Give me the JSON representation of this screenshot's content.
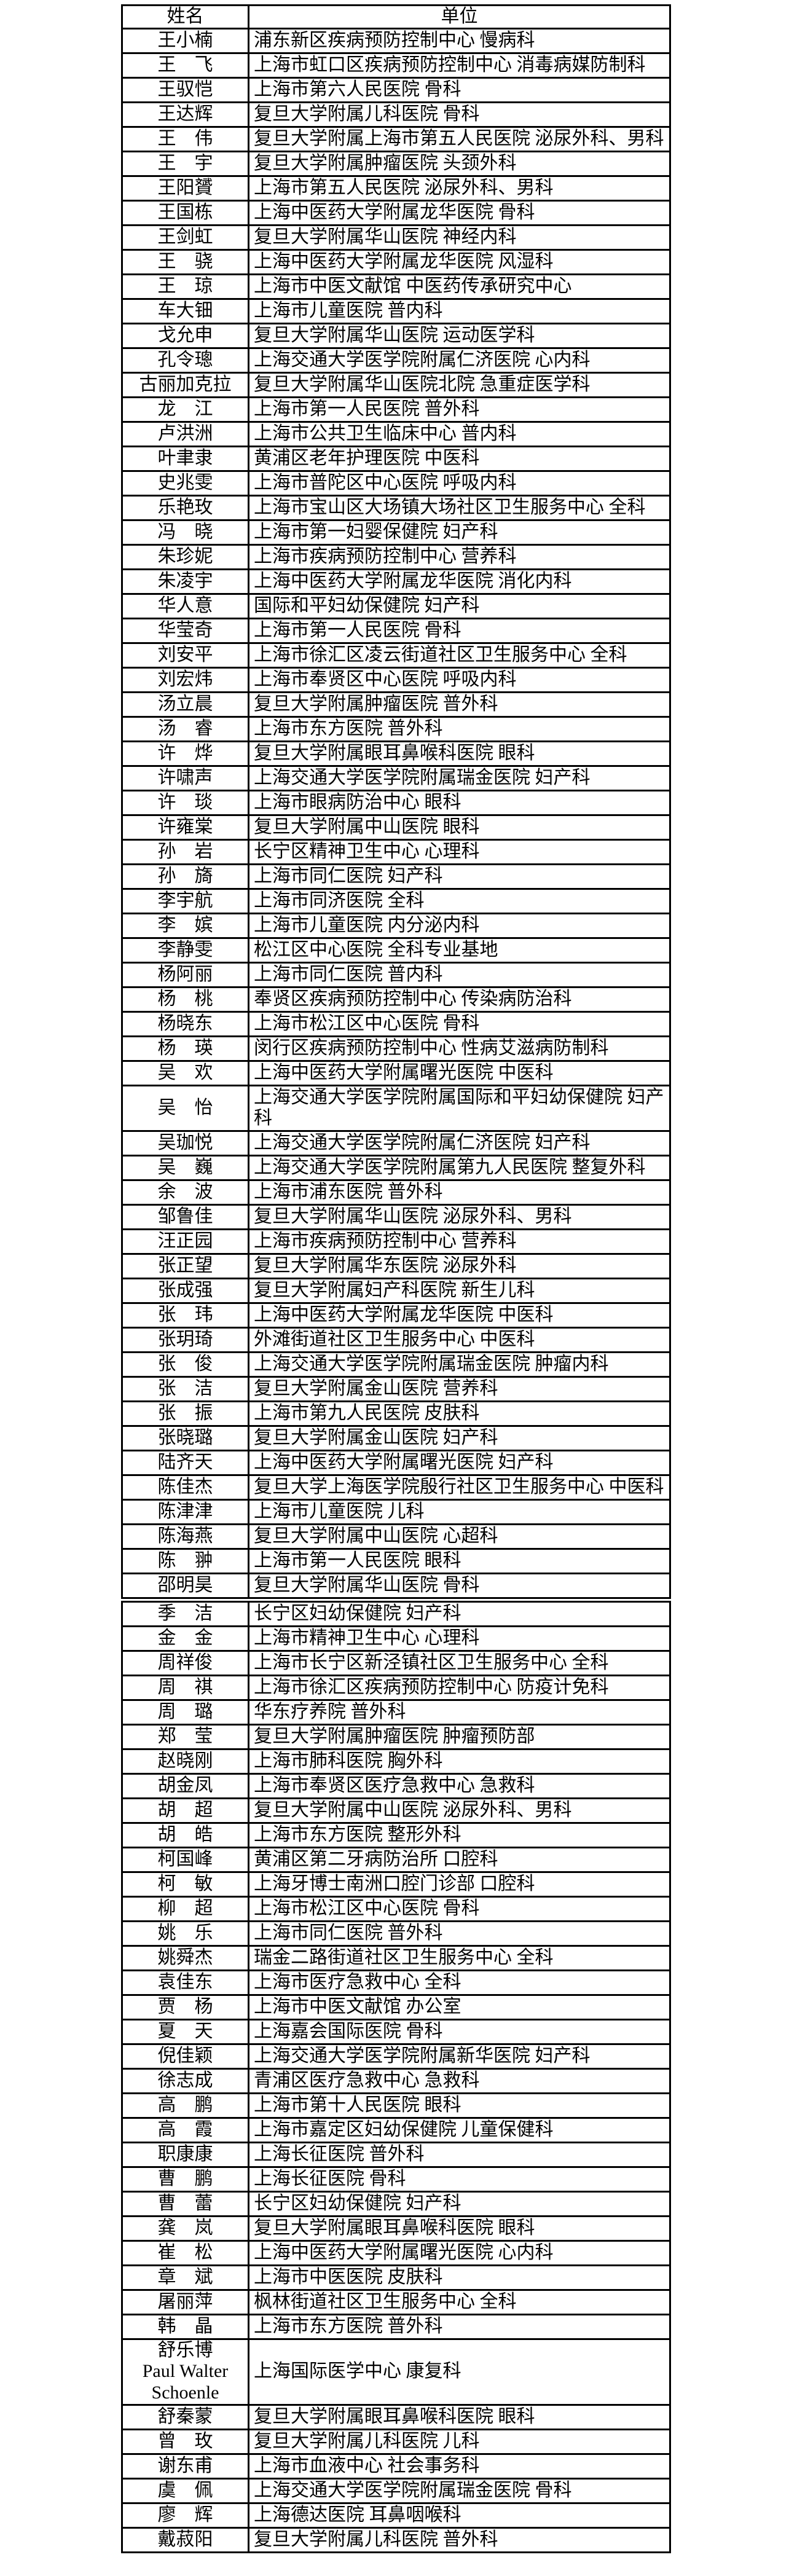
{
  "colors": {
    "border": "#000000",
    "text": "#000000",
    "background": "#ffffff"
  },
  "table": {
    "headers": {
      "name": "姓名",
      "unit": "单位"
    },
    "sections": [
      {
        "rows": [
          {
            "name": "王小楠",
            "unit": "浦东新区疾病预防控制中心 慢病科"
          },
          {
            "name": "王　飞",
            "unit": "上海市虹口区疾病预防控制中心 消毒病媒防制科"
          },
          {
            "name": "王驭恺",
            "unit": "上海市第六人民医院 骨科"
          },
          {
            "name": "王达辉",
            "unit": "复旦大学附属儿科医院 骨科"
          },
          {
            "name": "王　伟",
            "unit": "复旦大学附属上海市第五人民医院 泌尿外科、男科"
          },
          {
            "name": "王　宇",
            "unit": "复旦大学附属肿瘤医院 头颈外科"
          },
          {
            "name": "王阳贇",
            "unit": "上海市第五人民医院 泌尿外科、男科"
          },
          {
            "name": "王国栋",
            "unit": "上海中医药大学附属龙华医院 骨科"
          },
          {
            "name": "王剑虹",
            "unit": "复旦大学附属华山医院 神经内科"
          },
          {
            "name": "王　骁",
            "unit": "上海中医药大学附属龙华医院 风湿科"
          },
          {
            "name": "王　琼",
            "unit": "上海市中医文献馆 中医药传承研究中心"
          },
          {
            "name": "车大钿",
            "unit": "上海市儿童医院 普内科"
          },
          {
            "name": "戈允申",
            "unit": "复旦大学附属华山医院 运动医学科"
          },
          {
            "name": "孔令璁",
            "unit": "上海交通大学医学院附属仁济医院 心内科"
          },
          {
            "name": "古丽加克拉",
            "unit": "复旦大学附属华山医院北院 急重症医学科"
          },
          {
            "name": "龙　江",
            "unit": "上海市第一人民医院 普外科"
          },
          {
            "name": "卢洪洲",
            "unit": "上海市公共卫生临床中心 普内科"
          },
          {
            "name": "叶聿隶",
            "unit": "黄浦区老年护理医院 中医科"
          },
          {
            "name": "史兆雯",
            "unit": "上海市普陀区中心医院 呼吸内科"
          },
          {
            "name": "乐艳玫",
            "unit": "上海市宝山区大场镇大场社区卫生服务中心 全科"
          },
          {
            "name": "冯　晓",
            "unit": "上海市第一妇婴保健院 妇产科"
          },
          {
            "name": "朱珍妮",
            "unit": "上海市疾病预防控制中心 营养科"
          },
          {
            "name": "朱凌宇",
            "unit": "上海中医药大学附属龙华医院 消化内科"
          },
          {
            "name": "华人意",
            "unit": "国际和平妇幼保健院 妇产科"
          },
          {
            "name": "华莹奇",
            "unit": "上海市第一人民医院 骨科"
          },
          {
            "name": "刘安平",
            "unit": "上海市徐汇区凌云街道社区卫生服务中心 全科"
          },
          {
            "name": "刘宏炜",
            "unit": "上海市奉贤区中心医院 呼吸内科"
          },
          {
            "name": "汤立晨",
            "unit": "复旦大学附属肿瘤医院 普外科"
          },
          {
            "name": "汤　睿",
            "unit": "上海市东方医院 普外科"
          },
          {
            "name": "许　烨",
            "unit": "复旦大学附属眼耳鼻喉科医院 眼科"
          },
          {
            "name": "许啸声",
            "unit": "上海交通大学医学院附属瑞金医院 妇产科"
          },
          {
            "name": "许　琰",
            "unit": "上海市眼病防治中心 眼科"
          },
          {
            "name": "许雍棠",
            "unit": "复旦大学附属中山医院 眼科"
          },
          {
            "name": "孙　岩",
            "unit": "长宁区精神卫生中心 心理科"
          },
          {
            "name": "孙　旖",
            "unit": "上海市同仁医院 妇产科"
          },
          {
            "name": "李宇航",
            "unit": "上海市同济医院 全科"
          },
          {
            "name": "李　嫔",
            "unit": "上海市儿童医院 内分泌内科"
          },
          {
            "name": "李静雯",
            "unit": "松江区中心医院 全科专业基地"
          },
          {
            "name": "杨阿丽",
            "unit": "上海市同仁医院 普内科"
          },
          {
            "name": "杨　桃",
            "unit": "奉贤区疾病预防控制中心 传染病防治科"
          },
          {
            "name": "杨晓东",
            "unit": "上海市松江区中心医院 骨科"
          },
          {
            "name": "杨　瑛",
            "unit": "闵行区疾病预防控制中心 性病艾滋病防制科"
          },
          {
            "name": "吴　欢",
            "unit": "上海中医药大学附属曙光医院 中医科"
          },
          {
            "name": "吴　怡",
            "unit": "上海交通大学医学院附属国际和平妇幼保健院 妇产科",
            "lines": 2
          },
          {
            "name": "吴珈悦",
            "unit": "上海交通大学医学院附属仁济医院 妇产科"
          },
          {
            "name": "吴　巍",
            "unit": "上海交通大学医学院附属第九人民医院 整复外科"
          },
          {
            "name": "余　波",
            "unit": "上海市浦东医院 普外科"
          },
          {
            "name": "邹鲁佳",
            "unit": "复旦大学附属华山医院 泌尿外科、男科"
          },
          {
            "name": "汪正园",
            "unit": "上海市疾病预防控制中心 营养科"
          },
          {
            "name": "张正望",
            "unit": "复旦大学附属华东医院 泌尿外科"
          },
          {
            "name": "张成强",
            "unit": "复旦大学附属妇产科医院 新生儿科"
          },
          {
            "name": "张　玮",
            "unit": "上海中医药大学附属龙华医院 中医科"
          },
          {
            "name": "张玥琦",
            "unit": "外滩街道社区卫生服务中心 中医科"
          },
          {
            "name": "张　俊",
            "unit": "上海交通大学医学院附属瑞金医院 肿瘤内科"
          },
          {
            "name": "张　洁",
            "unit": "复旦大学附属金山医院 营养科"
          },
          {
            "name": "张　振",
            "unit": "上海市第九人民医院 皮肤科"
          },
          {
            "name": "张晓璐",
            "unit": "复旦大学附属金山医院 妇产科"
          },
          {
            "name": "陆齐天",
            "unit": "上海中医药大学附属曙光医院 妇产科"
          },
          {
            "name": "陈佳杰",
            "unit": "复旦大学上海医学院殷行社区卫生服务中心 中医科"
          },
          {
            "name": "陈津津",
            "unit": "上海市儿童医院 儿科"
          },
          {
            "name": "陈海燕",
            "unit": "复旦大学附属中山医院 心超科"
          },
          {
            "name": "陈　翀",
            "unit": "上海市第一人民医院 眼科"
          },
          {
            "name": "邵明昊",
            "unit": "复旦大学附属华山医院 骨科"
          }
        ]
      },
      {
        "rows": [
          {
            "name": "季　洁",
            "unit": "长宁区妇幼保健院 妇产科"
          },
          {
            "name": "金　金",
            "unit": "上海市精神卫生中心 心理科"
          },
          {
            "name": "周祥俊",
            "unit": "上海市长宁区新泾镇社区卫生服务中心 全科"
          },
          {
            "name": "周　祺",
            "unit": "上海市徐汇区疾病预防控制中心 防疫计免科"
          },
          {
            "name": "周　璐",
            "unit": "华东疗养院 普外科"
          },
          {
            "name": "郑　莹",
            "unit": "复旦大学附属肿瘤医院 肿瘤预防部"
          },
          {
            "name": "赵晓刚",
            "unit": "上海市肺科医院 胸外科"
          },
          {
            "name": "胡金凤",
            "unit": "上海市奉贤区医疗急救中心 急救科"
          },
          {
            "name": "胡　超",
            "unit": "复旦大学附属中山医院 泌尿外科、男科"
          },
          {
            "name": "胡　皓",
            "unit": "上海市东方医院 整形外科"
          },
          {
            "name": "柯国峰",
            "unit": "黄浦区第二牙病防治所 口腔科"
          },
          {
            "name": "柯　敏",
            "unit": "上海牙博士南洲口腔门诊部 口腔科"
          },
          {
            "name": "柳　超",
            "unit": "上海市松江区中心医院 骨科"
          },
          {
            "name": "姚　乐",
            "unit": "上海市同仁医院 普外科"
          },
          {
            "name": "姚舜杰",
            "unit": "瑞金二路街道社区卫生服务中心 全科"
          },
          {
            "name": "袁佳东",
            "unit": "上海市医疗急救中心 全科"
          },
          {
            "name": "贾　杨",
            "unit": "上海市中医文献馆 办公室"
          },
          {
            "name": "夏　天",
            "unit": "上海嘉会国际医院 骨科"
          },
          {
            "name": "倪佳颖",
            "unit": "上海交通大学医学院附属新华医院 妇产科"
          },
          {
            "name": "徐志成",
            "unit": "青浦区医疗急救中心 急救科"
          },
          {
            "name": "高　鹏",
            "unit": "上海市第十人民医院 眼科"
          },
          {
            "name": "高　霞",
            "unit": "上海市嘉定区妇幼保健院 儿童保健科"
          },
          {
            "name": "职康康",
            "unit": "上海长征医院 普外科"
          },
          {
            "name": "曹　鹏",
            "unit": "上海长征医院 骨科"
          },
          {
            "name": "曹　蕾",
            "unit": "长宁区妇幼保健院 妇产科"
          },
          {
            "name": "龚　岚",
            "unit": "复旦大学附属眼耳鼻喉科医院 眼科"
          },
          {
            "name": "崔　松",
            "unit": "上海中医药大学附属曙光医院 心内科"
          },
          {
            "name": "章　斌",
            "unit": "上海市中医医院 皮肤科"
          },
          {
            "name": "屠丽萍",
            "unit": "枫林街道社区卫生服务中心 全科"
          },
          {
            "name": "韩　晶",
            "unit": "上海市东方医院 普外科"
          },
          {
            "name": "舒乐博\nPaul Walter\nSchoenle",
            "unit": "上海国际医学中心 康复科",
            "lines": 3
          },
          {
            "name": "舒秦蒙",
            "unit": "复旦大学附属眼耳鼻喉科医院 眼科"
          },
          {
            "name": "曾　玫",
            "unit": "复旦大学附属儿科医院 儿科"
          },
          {
            "name": "谢东甫",
            "unit": "上海市血液中心 社会事务科"
          },
          {
            "name": "虞　佩",
            "unit": "上海交通大学医学院附属瑞金医院 骨科"
          },
          {
            "name": "廖　辉",
            "unit": "上海德达医院 耳鼻咽喉科"
          },
          {
            "name": "戴菽阳",
            "unit": "复旦大学附属儿科医院 普外科"
          }
        ]
      }
    ]
  }
}
